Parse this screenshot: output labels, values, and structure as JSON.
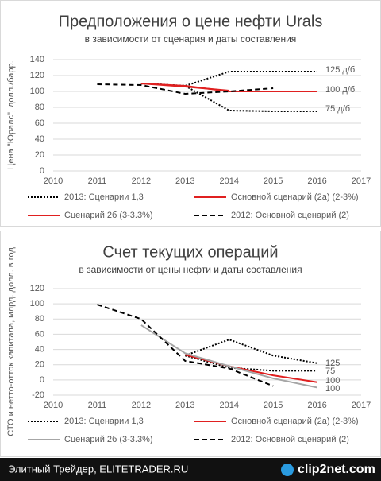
{
  "chart_data": [
    {
      "type": "line",
      "title": "Предположения о цене нефти Urals",
      "subtitle": "в зависимости от сценария и даты составления",
      "y_label": "Цена \"Юралс\", долл./барр.",
      "x": [
        2011,
        2012,
        2013,
        2014,
        2015,
        2016
      ],
      "xlim": [
        2010,
        2017
      ],
      "xticks": [
        2010,
        2011,
        2012,
        2013,
        2014,
        2015,
        2016,
        2017
      ],
      "ylim": [
        0,
        140
      ],
      "yticks": [
        0,
        20,
        40,
        60,
        80,
        100,
        120,
        140
      ],
      "grid": true,
      "series": [
        {
          "name": "2013: Сценарии 1,3",
          "color": "#000000",
          "style": "dotted",
          "branches": [
            [
              null,
              110,
              107,
              125,
              125,
              125
            ],
            [
              null,
              110,
              107,
              76,
              75,
              75
            ]
          ]
        },
        {
          "name": "Основной сценарий (2а) (2-3%)",
          "color": "#e02020",
          "style": "solid",
          "branches": [
            [
              null,
              110,
              107,
              100,
              100,
              100
            ]
          ]
        },
        {
          "name": "Сценарий 2б (3-3.3%)",
          "color": "#e02020",
          "style": "solid",
          "branches": [
            [
              null,
              110,
              106,
              101,
              null,
              null
            ]
          ]
        },
        {
          "name": "2012: Основной сценарий (2)",
          "color": "#000000",
          "style": "dashed",
          "branches": [
            [
              109,
              108,
              97,
              100,
              104,
              null
            ]
          ]
        }
      ],
      "annotations": [
        "125 д/б",
        "100 д/б",
        "75 д/б"
      ]
    },
    {
      "type": "line",
      "title": "Счет текущих операций",
      "subtitle": "в зависимости от цены нефти и даты составления",
      "y_label": "СТО и нетто-отток капитала, млрд. долл. в год",
      "x": [
        2011,
        2012,
        2013,
        2014,
        2015,
        2016
      ],
      "xlim": [
        2010,
        2017
      ],
      "xticks": [
        2010,
        2011,
        2012,
        2013,
        2014,
        2015,
        2016,
        2017
      ],
      "ylim": [
        -20,
        120
      ],
      "yticks": [
        -20,
        0,
        20,
        40,
        60,
        80,
        100,
        120
      ],
      "grid": true,
      "series": [
        {
          "name": "2013: Сценарии 1,3",
          "color": "#000000",
          "style": "dotted",
          "branches": [
            [
              null,
              null,
              32,
              53,
              32,
              22
            ],
            [
              null,
              null,
              32,
              16,
              12,
              12
            ]
          ]
        },
        {
          "name": "Основной сценарий (2а) (2-3%)",
          "color": "#e02020",
          "style": "solid",
          "branches": [
            [
              null,
              null,
              33,
              18,
              6,
              -3
            ]
          ]
        },
        {
          "name": "Сценарий 2б (3-3.3%)",
          "color": "#a6a6a6",
          "style": "solid",
          "branches": [
            [
              null,
              72,
              35,
              18,
              2,
              -10
            ]
          ]
        },
        {
          "name": "2012: Основной сценарий (2)",
          "color": "#000000",
          "style": "dashed",
          "branches": [
            [
              99,
              80,
              25,
              15,
              -8,
              null
            ]
          ]
        }
      ],
      "annotations": [
        "125",
        "75",
        "100",
        "100"
      ]
    }
  ],
  "footer": {
    "source": "Элитный Трейдер, ELITETRADER.RU",
    "logo": "clip2net.com"
  }
}
